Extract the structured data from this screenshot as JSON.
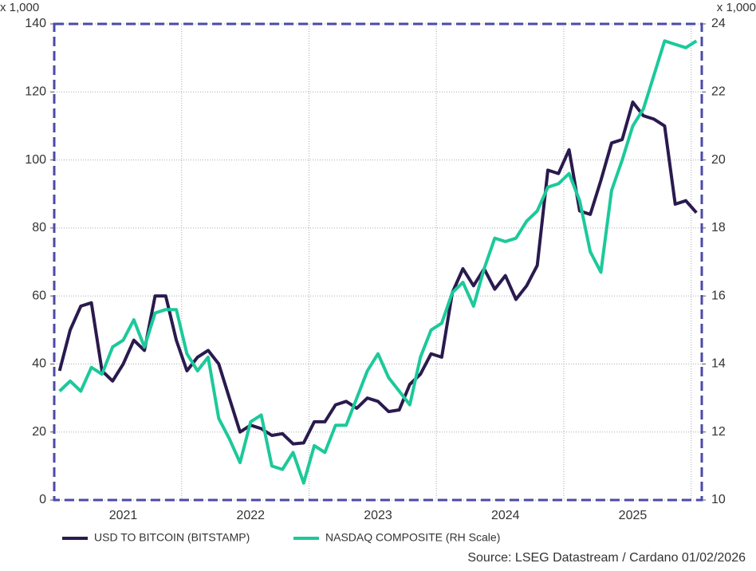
{
  "chart_data": {
    "type": "line",
    "y_unit_label": "x 1,000",
    "y2_unit_label": "x 1,000",
    "source": "Source: LSEG Datastream / Cardano  01/02/2026",
    "categories": [
      null,
      null,
      null,
      null,
      null,
      null,
      "2021",
      null,
      null,
      null,
      null,
      null,
      null,
      null,
      null,
      null,
      null,
      null,
      "2022",
      null,
      null,
      null,
      null,
      null,
      null,
      null,
      null,
      null,
      null,
      null,
      "2023",
      null,
      null,
      null,
      null,
      null,
      null,
      null,
      null,
      null,
      null,
      null,
      "2024",
      null,
      null,
      null,
      null,
      null,
      null,
      null,
      null,
      null,
      null,
      null,
      "2025",
      null,
      null,
      null,
      null,
      null,
      null
    ],
    "series": [
      {
        "name": "USD TO BITCOIN (BITSTAMP)",
        "color": "#2a1a4e",
        "axis": "y",
        "values": [
          38,
          50,
          57,
          58,
          38,
          35,
          40,
          47,
          44,
          60,
          60,
          47,
          38,
          42,
          44,
          40,
          30,
          20,
          22,
          21,
          19,
          19.5,
          16.5,
          16.8,
          23,
          23,
          28,
          29,
          27,
          30,
          29,
          26,
          26.5,
          34,
          37,
          43,
          42,
          61,
          68,
          63,
          68,
          62,
          66,
          59,
          63,
          69,
          97,
          96,
          103,
          85,
          84,
          94,
          105,
          106,
          117,
          113,
          112,
          110,
          87,
          88,
          84.5
        ]
      },
      {
        "name": "NASDAQ COMPOSITE (RH Scale)",
        "color": "#1cc99a",
        "axis": "y2",
        "values": [
          13.2,
          13.5,
          13.2,
          13.9,
          13.7,
          14.5,
          14.7,
          15.3,
          14.5,
          15.5,
          15.6,
          15.6,
          14.3,
          13.8,
          14.2,
          12.4,
          11.8,
          11.1,
          12.3,
          12.5,
          11.0,
          10.9,
          11.4,
          10.5,
          11.6,
          11.4,
          12.2,
          12.2,
          13.0,
          13.8,
          14.3,
          13.6,
          13.2,
          12.8,
          14.2,
          15.0,
          15.2,
          16.1,
          16.4,
          15.7,
          16.8,
          17.7,
          17.6,
          17.7,
          18.2,
          18.5,
          19.2,
          19.3,
          19.6,
          18.8,
          17.3,
          16.7,
          19.1,
          20.0,
          21.0,
          21.5,
          22.5,
          23.5,
          23.4,
          23.3,
          23.5
        ]
      }
    ],
    "ylim": [
      0,
      140
    ],
    "yticks": [
      0,
      20,
      40,
      60,
      80,
      100,
      120,
      140
    ],
    "y2lim": [
      10,
      24
    ],
    "y2ticks": [
      10,
      12,
      14,
      16,
      18,
      20,
      22,
      24
    ],
    "grid": true
  }
}
